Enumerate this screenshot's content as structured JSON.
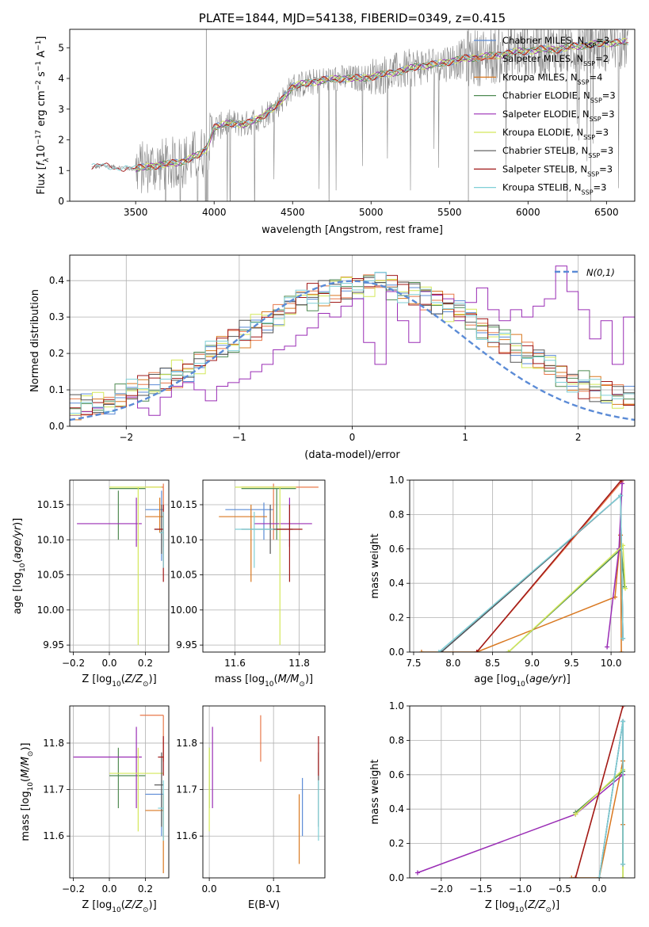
{
  "colors": {
    "Chabrier MILES": "#5b8bd6",
    "Salpeter MILES": "#e8784a",
    "Kroupa MILES": "#d97820",
    "Chabrier ELODIE": "#4f8a52",
    "Salpeter ELODIE": "#9a2db5",
    "Kroupa ELODIE": "#d4e85a",
    "Chabrier STELIB": "#555555",
    "Salpeter STELIB": "#a01818",
    "Kroupa STELIB": "#7fcfd6"
  },
  "chart_data": [
    {
      "id": "spectrum",
      "type": "line",
      "title": "PLATE=1844, MJD=54138, FIBERID=0349, z=0.415",
      "xlabel": "wavelength [Angstrom, rest frame]",
      "ylabel": "Flux [f_λ 10^-17 erg cm^-2 s^-1 A^-1]",
      "xlim": [
        3080,
        6680
      ],
      "ylim": [
        0,
        5.6
      ],
      "xticks": [
        3500,
        4000,
        4500,
        5000,
        5500,
        6000,
        6500
      ],
      "yticks": [
        0,
        1,
        2,
        3,
        4,
        5
      ],
      "grid": false,
      "legend_position": "top-right",
      "legend": [
        {
          "name": "Chabrier MILES",
          "nssp": "3"
        },
        {
          "name": "Salpeter MILES",
          "nssp": "2"
        },
        {
          "name": "Kroupa MILES",
          "nssp": "4"
        },
        {
          "name": "Chabrier ELODIE",
          "nssp": "3"
        },
        {
          "name": "Salpeter ELODIE",
          "nssp": "3"
        },
        {
          "name": "Kroupa ELODIE",
          "nssp": "3"
        },
        {
          "name": "Chabrier STELIB",
          "nssp": "3"
        },
        {
          "name": "Salpeter STELIB",
          "nssp": "3"
        },
        {
          "name": "Kroupa STELIB",
          "nssp": "3"
        }
      ],
      "legend_prefix": "N",
      "legend_sub": "SSP",
      "continuum": {
        "x": [
          3220,
          3300,
          3400,
          3500,
          3600,
          3700,
          3800,
          3900,
          3950,
          4000,
          4100,
          4200,
          4300,
          4400,
          4500,
          4600,
          4700,
          4800,
          4900,
          5000,
          5100,
          5200,
          5300,
          5400,
          5500,
          5600,
          5700,
          5800,
          5900,
          6000,
          6100,
          6200,
          6300,
          6400,
          6500,
          6680
        ],
        "y": [
          1.1,
          1.15,
          1.1,
          1.05,
          1.15,
          1.2,
          1.3,
          1.5,
          1.7,
          2.4,
          2.55,
          2.5,
          2.75,
          3.1,
          3.75,
          3.85,
          3.95,
          4.0,
          4.0,
          4.05,
          4.15,
          4.25,
          4.4,
          4.45,
          4.55,
          4.65,
          4.7,
          4.75,
          4.85,
          4.9,
          4.95,
          4.95,
          5.05,
          5.1,
          5.15,
          5.2
        ]
      }
    },
    {
      "id": "residuals",
      "type": "histogram",
      "xlabel": "(data-model)/error",
      "ylabel": "Normed distribution",
      "xlim": [
        -2.5,
        2.5
      ],
      "ylim": [
        0,
        0.47
      ],
      "xticks": [
        -2,
        -1,
        0,
        1,
        2
      ],
      "yticks": [
        0.0,
        0.1,
        0.2,
        0.3,
        0.4
      ],
      "grid": true,
      "legend_position": "top-right",
      "gaussian_label": "N(0,1)",
      "bin_width": 0.1,
      "bins_start": -2.5,
      "salpeter_elodie": [
        0.03,
        0.04,
        0.05,
        0.06,
        0.09,
        0.08,
        0.05,
        0.03,
        0.08,
        0.11,
        0.12,
        0.1,
        0.07,
        0.11,
        0.12,
        0.13,
        0.15,
        0.17,
        0.21,
        0.22,
        0.25,
        0.27,
        0.31,
        0.3,
        0.33,
        0.35,
        0.23,
        0.17,
        0.37,
        0.29,
        0.23,
        0.37,
        0.36,
        0.35,
        0.29,
        0.34,
        0.38,
        0.32,
        0.29,
        0.32,
        0.3,
        0.33,
        0.35,
        0.44,
        0.37,
        0.32,
        0.24,
        0.29,
        0.17,
        0.3,
        0.26
      ]
    },
    {
      "id": "age_vs_Z",
      "type": "errorbar",
      "xlabel": "Z [log10(Z/Z⊙)]",
      "ylabel": "age [log10(age/yr)]",
      "xlim": [
        -0.22,
        0.33
      ],
      "ylim": [
        9.94,
        10.185
      ],
      "xticks": [
        -0.2,
        0.0,
        0.2
      ],
      "xtick_labels": [
        "−0.2",
        "0.0",
        "0.2"
      ],
      "yticks": [
        9.95,
        10.0,
        10.05,
        10.1,
        10.15
      ],
      "grid": true,
      "points": [
        {
          "s": "Chabrier MILES",
          "x": 0.29,
          "y": 10.143,
          "xl": 0.2,
          "xh": 0.3,
          "yl": 10.07,
          "yh": 10.17
        },
        {
          "s": "Salpeter MILES",
          "x": 0.3,
          "y": 10.175,
          "xl": 0.2,
          "xh": 0.3,
          "yl": 10.09,
          "yh": 10.18
        },
        {
          "s": "Kroupa MILES",
          "x": 0.28,
          "y": 10.133,
          "xl": 0.2,
          "xh": 0.3,
          "yl": 10.11,
          "yh": 10.16
        },
        {
          "s": "Chabrier ELODIE",
          "x": 0.05,
          "y": 10.173,
          "xl": 0.0,
          "xh": 0.2,
          "yl": 10.1,
          "yh": 10.17
        },
        {
          "s": "Salpeter ELODIE",
          "x": 0.15,
          "y": 10.123,
          "xl": -0.18,
          "xh": 0.18,
          "yl": 10.09,
          "yh": 10.16
        },
        {
          "s": "Kroupa ELODIE",
          "x": 0.16,
          "y": 10.175,
          "xl": 0.0,
          "xh": 0.29,
          "yl": 9.95,
          "yh": 10.175
        },
        {
          "s": "Chabrier STELIB",
          "x": 0.29,
          "y": 10.115,
          "xl": 0.25,
          "xh": 0.3,
          "yl": 10.08,
          "yh": 10.15
        },
        {
          "s": "Salpeter STELIB",
          "x": 0.3,
          "y": 10.115,
          "xl": 0.25,
          "xh": 0.3,
          "yl": 10.04,
          "yh": 10.15
        },
        {
          "s": "Kroupa STELIB",
          "x": 0.3,
          "y": 10.11,
          "xl": 0.28,
          "xh": 0.3,
          "yl": 10.06,
          "yh": 10.14
        }
      ]
    },
    {
      "id": "age_vs_mass",
      "type": "errorbar",
      "xlabel": "mass [log10(M/M⊙)]",
      "ylabel": "",
      "xlim": [
        11.5,
        11.88
      ],
      "ylim": [
        9.94,
        10.185
      ],
      "xticks": [
        11.6,
        11.8
      ],
      "yticks": [
        9.95,
        10.0,
        10.05,
        10.1,
        10.15
      ],
      "grid": true,
      "points": [
        {
          "s": "Chabrier MILES",
          "x": 11.69,
          "y": 10.143,
          "xl": 11.57,
          "xh": 11.72,
          "yl": 10.1,
          "yh": 10.153
        },
        {
          "s": "Salpeter MILES",
          "x": 11.72,
          "y": 10.175,
          "xl": 11.62,
          "xh": 11.86,
          "yl": 10.1,
          "yh": 10.18
        },
        {
          "s": "Kroupa MILES",
          "x": 11.65,
          "y": 10.133,
          "xl": 11.55,
          "xh": 11.7,
          "yl": 10.04,
          "yh": 10.15
        },
        {
          "s": "Chabrier ELODIE",
          "x": 11.73,
          "y": 10.173,
          "xl": 11.62,
          "xh": 11.79,
          "yl": 10.1,
          "yh": 10.173
        },
        {
          "s": "Salpeter ELODIE",
          "x": 11.77,
          "y": 10.123,
          "xl": 11.66,
          "xh": 11.84,
          "yl": 10.09,
          "yh": 10.16
        },
        {
          "s": "Kroupa ELODIE",
          "x": 11.74,
          "y": 10.175,
          "xl": 11.6,
          "xh": 11.79,
          "yl": 9.95,
          "yh": 10.175
        },
        {
          "s": "Chabrier STELIB",
          "x": 11.71,
          "y": 10.115,
          "xl": 11.62,
          "xh": 11.78,
          "yl": 10.08,
          "yh": 10.15
        },
        {
          "s": "Salpeter STELIB",
          "x": 11.77,
          "y": 10.115,
          "xl": 11.73,
          "xh": 11.81,
          "yl": 10.04,
          "yh": 10.15
        },
        {
          "s": "Kroupa STELIB",
          "x": 11.66,
          "y": 10.115,
          "xl": 11.6,
          "xh": 11.72,
          "yl": 10.06,
          "yh": 10.14
        }
      ]
    },
    {
      "id": "mass_weight_vs_age",
      "type": "line",
      "xlabel": "age [log10(age/yr)]",
      "ylabel": "mass weight",
      "xlim": [
        7.45,
        10.3
      ],
      "ylim": [
        0,
        1.0
      ],
      "xticks": [
        7.5,
        8.0,
        8.5,
        9.0,
        9.5,
        10.0
      ],
      "yticks": [
        0.0,
        0.2,
        0.4,
        0.6,
        0.8,
        1.0
      ],
      "grid": true,
      "series": [
        {
          "s": "Chabrier MILES",
          "x": [
            7.85,
            10.12,
            10.15
          ],
          "y": [
            0.0,
            0.91,
            0.08
          ]
        },
        {
          "s": "Salpeter MILES",
          "x": [
            8.3,
            10.15
          ],
          "y": [
            0.0,
            1.0
          ]
        },
        {
          "s": "Kroupa MILES",
          "x": [
            7.6,
            8.3,
            10.05,
            10.12,
            10.13
          ],
          "y": [
            0.0,
            0.0,
            0.32,
            0.68,
            0.0
          ]
        },
        {
          "s": "Chabrier ELODIE",
          "x": [
            8.7,
            10.13,
            10.17
          ],
          "y": [
            0.0,
            0.6,
            0.38
          ]
        },
        {
          "s": "Salpeter ELODIE",
          "x": [
            9.95,
            10.1,
            10.14
          ],
          "y": [
            0.03,
            0.6,
            0.98
          ]
        },
        {
          "s": "Kroupa ELODIE",
          "x": [
            8.7,
            10.15,
            10.18
          ],
          "y": [
            0.0,
            0.62,
            0.37
          ]
        },
        {
          "s": "Chabrier STELIB",
          "x": [
            7.85,
            10.12,
            10.15
          ],
          "y": [
            0.0,
            0.91,
            0.08
          ]
        },
        {
          "s": "Salpeter STELIB",
          "x": [
            8.3,
            10.13
          ],
          "y": [
            0.0,
            1.0
          ]
        },
        {
          "s": "Kroupa STELIB",
          "x": [
            7.82,
            10.12,
            10.15
          ],
          "y": [
            0.0,
            0.91,
            0.08
          ]
        }
      ]
    },
    {
      "id": "mass_vs_Z",
      "type": "errorbar",
      "xlabel": "Z [log10(Z/Z⊙)]",
      "ylabel": "mass [log10(M/M⊙)]",
      "xlim": [
        -0.22,
        0.33
      ],
      "ylim": [
        11.51,
        11.88
      ],
      "xticks": [
        -0.2,
        0.0,
        0.2
      ],
      "xtick_labels": [
        "−0.2",
        "0.0",
        "0.2"
      ],
      "yticks": [
        11.6,
        11.7,
        11.8
      ],
      "grid": true,
      "points": [
        {
          "s": "Chabrier MILES",
          "x": 0.29,
          "y": 11.69,
          "xl": 0.2,
          "xh": 0.3,
          "yl": 11.6,
          "yh": 11.72
        },
        {
          "s": "Salpeter MILES",
          "x": 0.3,
          "y": 11.86,
          "xl": 0.17,
          "xh": 0.3,
          "yl": 11.76,
          "yh": 11.86
        },
        {
          "s": "Kroupa MILES",
          "x": 0.3,
          "y": 11.655,
          "xl": 0.2,
          "xh": 0.3,
          "yl": 11.52,
          "yh": 11.69
        },
        {
          "s": "Chabrier ELODIE",
          "x": 0.05,
          "y": 11.73,
          "xl": 0.0,
          "xh": 0.2,
          "yl": 11.66,
          "yh": 11.79
        },
        {
          "s": "Salpeter ELODIE",
          "x": 0.15,
          "y": 11.77,
          "xl": -0.2,
          "xh": 0.18,
          "yl": 11.66,
          "yh": 11.835
        },
        {
          "s": "Kroupa ELODIE",
          "x": 0.16,
          "y": 11.735,
          "xl": 0.0,
          "xh": 0.3,
          "yl": 11.61,
          "yh": 11.79
        },
        {
          "s": "Chabrier STELIB",
          "x": 0.29,
          "y": 11.71,
          "xl": 0.25,
          "xh": 0.3,
          "yl": 11.62,
          "yh": 11.78
        },
        {
          "s": "Salpeter STELIB",
          "x": 0.3,
          "y": 11.77,
          "xl": 0.27,
          "xh": 0.3,
          "yl": 11.73,
          "yh": 11.815
        },
        {
          "s": "Kroupa STELIB",
          "x": 0.3,
          "y": 11.66,
          "xl": 0.27,
          "xh": 0.3,
          "yl": 11.59,
          "yh": 11.72
        }
      ]
    },
    {
      "id": "mass_vs_EBV",
      "type": "errorbar",
      "xlabel": "E(B-V)",
      "ylabel": "",
      "xlim": [
        -0.01,
        0.18
      ],
      "ylim": [
        11.51,
        11.88
      ],
      "xticks": [
        0.0,
        0.1
      ],
      "yticks": [
        11.6,
        11.7,
        11.8
      ],
      "grid": true,
      "points": [
        {
          "s": "Chabrier MILES",
          "x": 0.145,
          "y": 11.69,
          "yl": 11.6,
          "yh": 11.725
        },
        {
          "s": "Salpeter MILES",
          "x": 0.08,
          "y": 11.86,
          "yl": 11.76,
          "yh": 11.86
        },
        {
          "s": "Kroupa MILES",
          "x": 0.14,
          "y": 11.655,
          "yl": 11.54,
          "yh": 11.69
        },
        {
          "s": "Chabrier ELODIE",
          "x": 0.0,
          "y": 11.73,
          "yl": 11.66,
          "yh": 11.79
        },
        {
          "s": "Salpeter ELODIE",
          "x": 0.005,
          "y": 11.77,
          "yl": 11.66,
          "yh": 11.835
        },
        {
          "s": "Kroupa ELODIE",
          "x": 0.0,
          "y": 11.735,
          "yl": 11.61,
          "yh": 11.79
        },
        {
          "s": "Chabrier STELIB",
          "x": 0.17,
          "y": 11.71,
          "yl": 11.62,
          "yh": 11.78
        },
        {
          "s": "Salpeter STELIB",
          "x": 0.17,
          "y": 11.77,
          "yl": 11.73,
          "yh": 11.815
        },
        {
          "s": "Kroupa STELIB",
          "x": 0.17,
          "y": 11.66,
          "yl": 11.59,
          "yh": 11.72
        }
      ]
    },
    {
      "id": "mass_weight_vs_Z",
      "type": "line",
      "xlabel": "Z [log10(Z/Z⊙)]",
      "ylabel": "mass weight",
      "xlim": [
        -2.4,
        0.45
      ],
      "ylim": [
        0,
        1.0
      ],
      "xticks": [
        -2.0,
        -1.5,
        -1.0,
        -0.5,
        0.0
      ],
      "xtick_labels": [
        "−2.0",
        "−1.5",
        "−1.0",
        "−0.5",
        "0.0"
      ],
      "yticks": [
        0.0,
        0.2,
        0.4,
        0.6,
        0.8,
        1.0
      ],
      "grid": true,
      "series": [
        {
          "s": "Chabrier MILES",
          "x": [
            0.0,
            0.3,
            0.3
          ],
          "y": [
            0.0,
            0.91,
            0.08
          ]
        },
        {
          "s": "Salpeter MILES",
          "x": [
            -0.3,
            0.3
          ],
          "y": [
            0.0,
            1.0
          ]
        },
        {
          "s": "Kroupa MILES",
          "x": [
            -0.35,
            0.0,
            0.3,
            0.3
          ],
          "y": [
            0.0,
            0.0,
            0.68,
            0.31
          ]
        },
        {
          "s": "Chabrier ELODIE",
          "x": [
            -0.3,
            0.3,
            0.3
          ],
          "y": [
            0.38,
            0.62,
            0.0
          ]
        },
        {
          "s": "Salpeter ELODIE",
          "x": [
            -2.3,
            -0.3,
            0.3
          ],
          "y": [
            0.03,
            0.37,
            0.6
          ]
        },
        {
          "s": "Kroupa ELODIE",
          "x": [
            -0.3,
            0.3,
            0.3
          ],
          "y": [
            0.37,
            0.63,
            0.0
          ]
        },
        {
          "s": "Chabrier STELIB",
          "x": [
            0.0,
            0.3,
            0.3
          ],
          "y": [
            0.0,
            0.91,
            0.08
          ]
        },
        {
          "s": "Salpeter STELIB",
          "x": [
            -0.3,
            0.3
          ],
          "y": [
            0.0,
            1.0
          ]
        },
        {
          "s": "Kroupa STELIB",
          "x": [
            0.0,
            0.3,
            0.3
          ],
          "y": [
            0.0,
            0.91,
            0.08
          ]
        }
      ]
    }
  ]
}
